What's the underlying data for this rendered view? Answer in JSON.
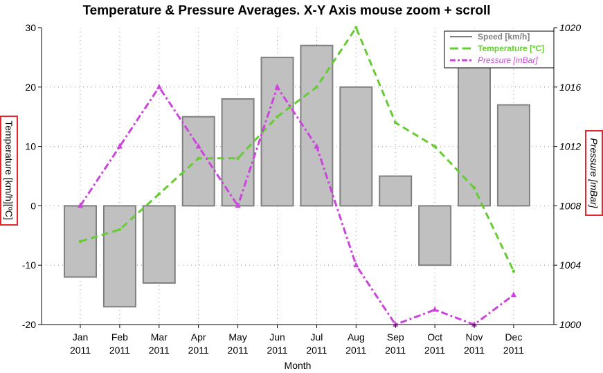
{
  "chart_data": {
    "type": "bar",
    "title": "Temperature & Pressure Averages. X-Y Axis mouse zoom + scroll",
    "xlabel": "Month",
    "ylabel": "Temperature [km/h][ºC]",
    "y2label": "Pressure [mBar]",
    "ylim": [
      -20,
      30
    ],
    "y2lim": [
      1000,
      1020
    ],
    "yticks": [
      "-20",
      "-10",
      "0",
      "10",
      "20",
      "30"
    ],
    "y2ticks": [
      "1000",
      "1004",
      "1008",
      "1012",
      "1016",
      "1020"
    ],
    "categories": [
      [
        "Jan",
        "2011"
      ],
      [
        "Feb",
        "2011"
      ],
      [
        "Mar",
        "2011"
      ],
      [
        "Apr",
        "2011"
      ],
      [
        "May",
        "2011"
      ],
      [
        "Jun",
        "2011"
      ],
      [
        "Jul",
        "2011"
      ],
      [
        "Aug",
        "2011"
      ],
      [
        "Sep",
        "2011"
      ],
      [
        "Oct",
        "2011"
      ],
      [
        "Nov",
        "2011"
      ],
      [
        "Dec",
        "2011"
      ]
    ],
    "grid": true,
    "legend_position": "top-right",
    "series": [
      {
        "name": "Speed [km/h]",
        "type": "bar",
        "axis": "left",
        "color": "#808080",
        "fill": "#c0c0c0",
        "values": [
          -12,
          -17,
          -13,
          15,
          18,
          25,
          27,
          20,
          5,
          -10,
          24,
          17
        ]
      },
      {
        "name": "Temperature [ºC]",
        "type": "line",
        "axis": "left",
        "color": "#66cc33",
        "values": [
          -6,
          -4,
          2,
          8,
          8,
          15,
          20,
          30,
          14,
          10,
          3,
          -11
        ]
      },
      {
        "name": "Pressure [mBar]",
        "type": "line",
        "axis": "right",
        "color": "#cc44dd",
        "values": [
          1008,
          1012,
          1016,
          1012,
          1008,
          1016,
          1012,
          1004,
          1000,
          1001,
          1000,
          1002
        ]
      }
    ]
  }
}
